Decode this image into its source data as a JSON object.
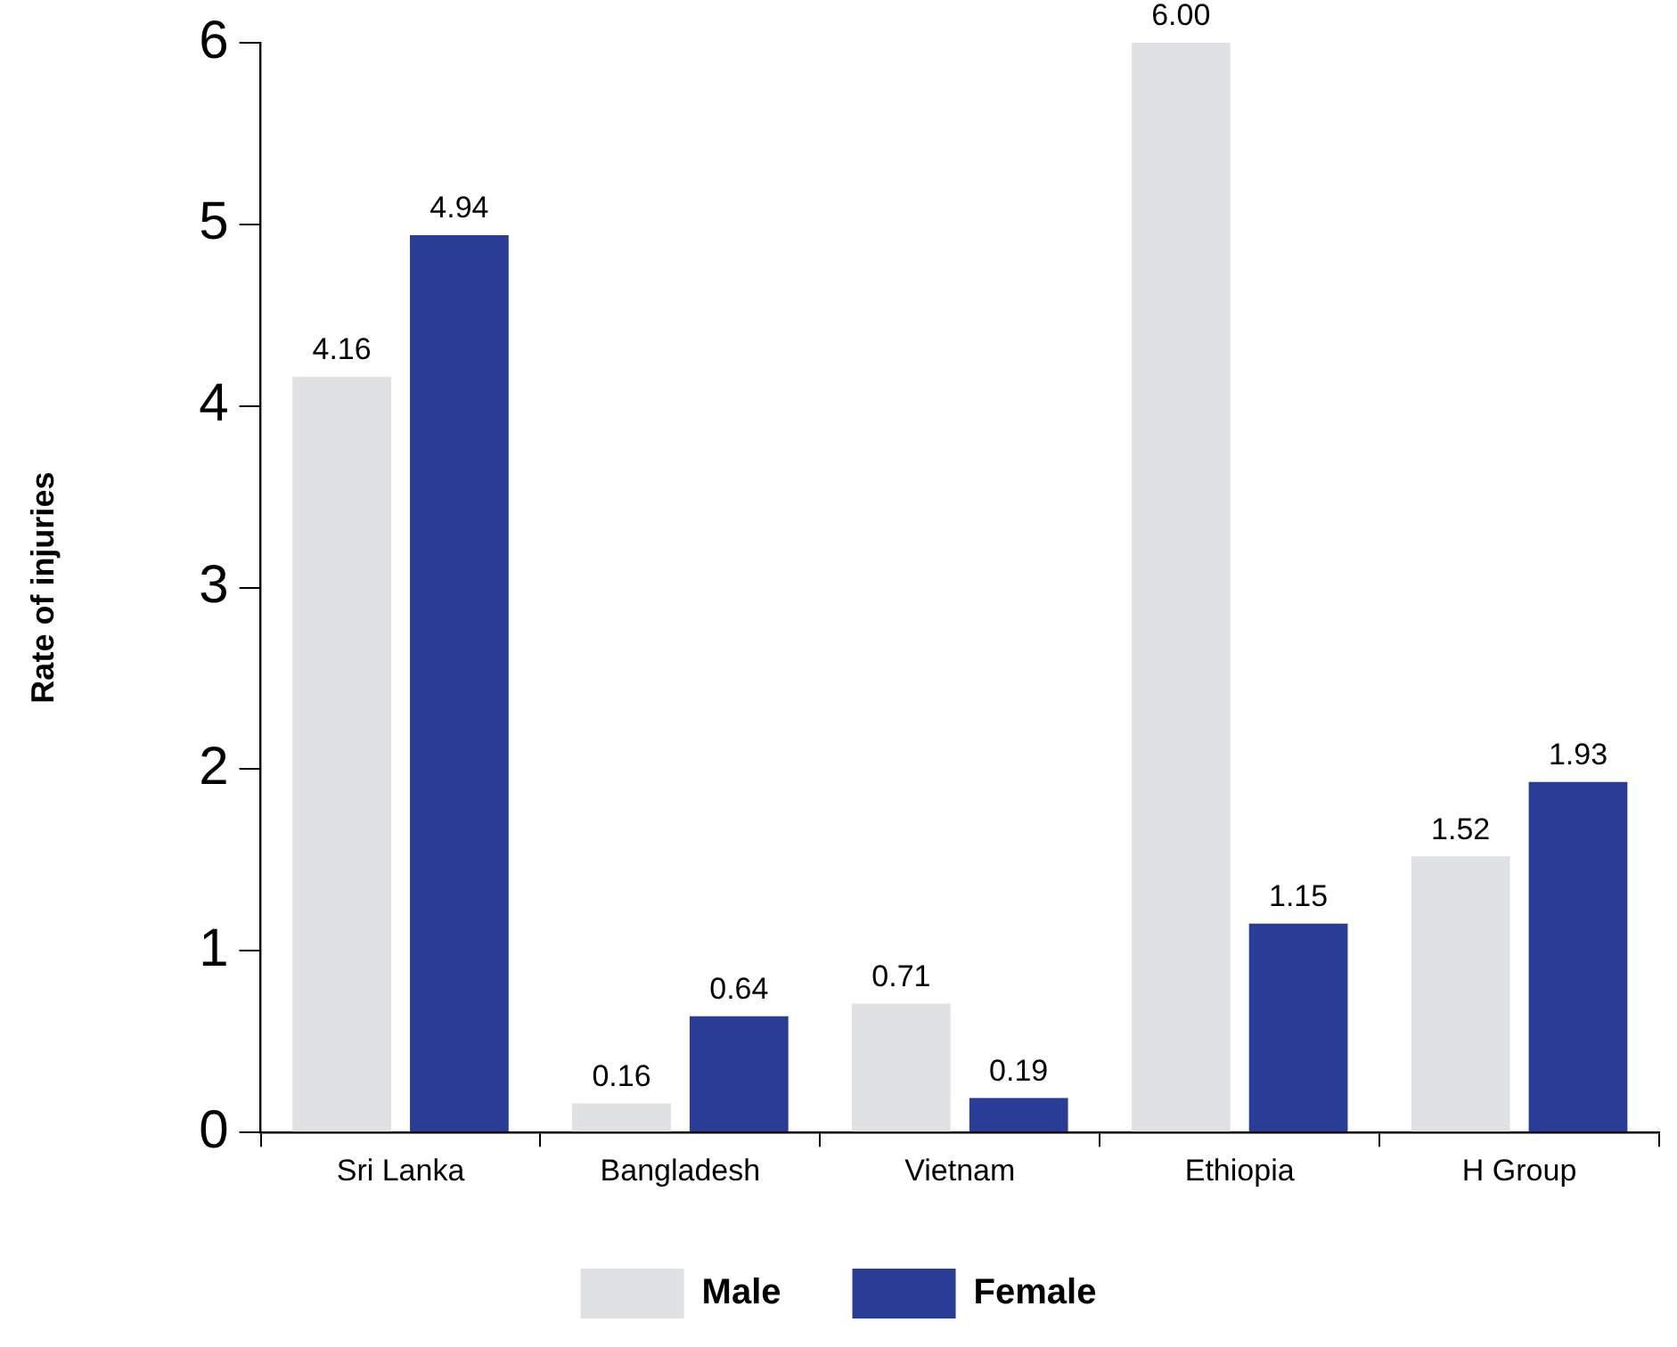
{
  "chart_data": {
    "type": "bar",
    "ylabel": "Rate of injuries",
    "categories": [
      "Sri Lanka",
      "Bangladesh",
      "Vietnam",
      "Ethiopia",
      "H Group"
    ],
    "series": [
      {
        "name": "Male",
        "color": "#e0e1e3",
        "values": [
          4.16,
          0.16,
          0.71,
          6.0,
          1.52
        ],
        "value_labels": [
          "4.16",
          "0.16",
          "0.71",
          "6.00",
          "1.52"
        ]
      },
      {
        "name": "Female",
        "color": "#2a3d96",
        "values": [
          4.94,
          0.64,
          0.19,
          1.15,
          1.93
        ],
        "value_labels": [
          "4.94",
          "0.64",
          "0.19",
          "1.15",
          "1.93"
        ]
      }
    ],
    "ylim": [
      0,
      6
    ],
    "yticks": [
      0,
      1,
      2,
      3,
      4,
      5,
      6
    ],
    "grid": false,
    "legend": "bottom"
  }
}
